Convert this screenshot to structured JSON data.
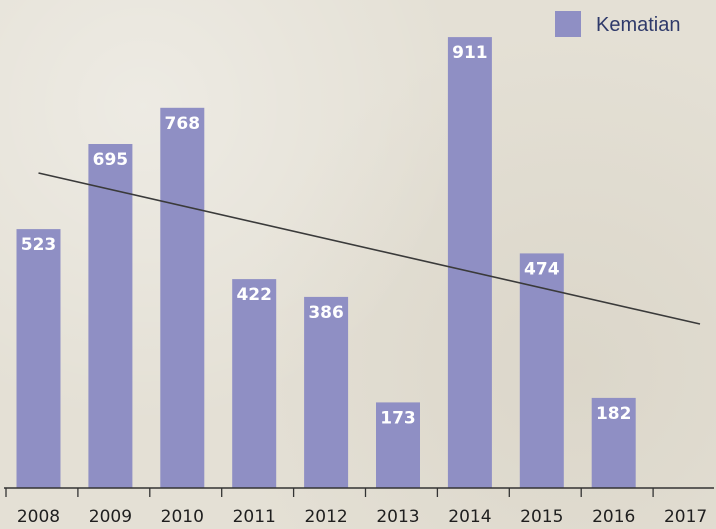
{
  "chart_data": {
    "type": "bar",
    "categories": [
      "2008",
      "2009",
      "2010",
      "2011",
      "2012",
      "2013",
      "2014",
      "2015",
      "2016",
      "2017"
    ],
    "series": [
      {
        "name": "Kematian",
        "values": [
          523,
          695,
          768,
          422,
          386,
          173,
          911,
          474,
          182,
          null
        ]
      }
    ],
    "data_labels": [
      "523",
      "695",
      "768",
      "422",
      "386",
      "173",
      "911",
      "474",
      "182",
      ""
    ],
    "trendline": {
      "shown": true,
      "color": "#3a3a3a"
    },
    "ylim": [
      0,
      950
    ],
    "grid": false,
    "legend": {
      "position": "top-right"
    },
    "colors": {
      "bar": "#8f8fc4",
      "label": "#ffffff",
      "axis": "#333333",
      "background": "#e4e0d5"
    },
    "title": "",
    "xlabel": "",
    "ylabel": ""
  }
}
